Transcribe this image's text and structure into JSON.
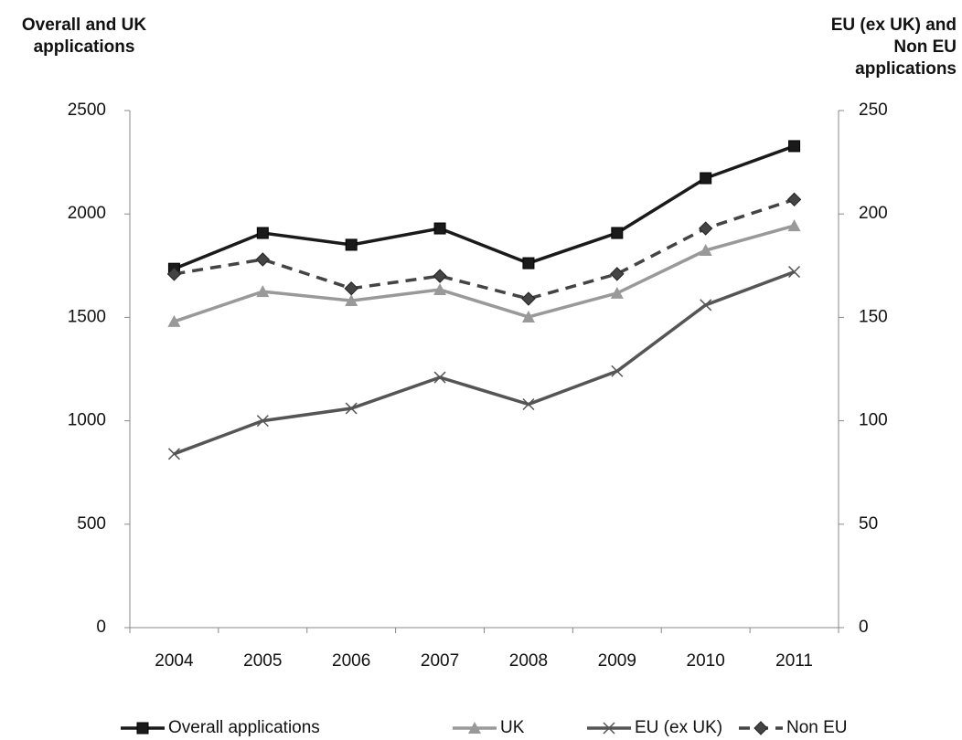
{
  "chart_data": {
    "type": "line",
    "y_title": "Overall and UK applications",
    "y2_title": "EU (ex UK) and Non EU applications",
    "categories": [
      "2004",
      "2005",
      "2006",
      "2007",
      "2008",
      "2009",
      "2010",
      "2011"
    ],
    "ylim": [
      0,
      2500
    ],
    "yticks": [
      0,
      500,
      1000,
      1500,
      2000,
      2500
    ],
    "y2lim": [
      0,
      250
    ],
    "y2ticks": [
      0,
      50,
      100,
      150,
      200,
      250
    ],
    "legend": "bottom",
    "series": [
      {
        "name": "Overall applications",
        "color": "#1a1a1a",
        "marker": "square",
        "dash": false,
        "axis": "y",
        "values": [
          1735,
          1908,
          1851,
          1930,
          1762,
          1908,
          2173,
          2328
        ]
      },
      {
        "name": "UK",
        "color": "#999999",
        "marker": "triangle",
        "dash": false,
        "axis": "y",
        "values": [
          1480,
          1625,
          1581,
          1634,
          1502,
          1617,
          1824,
          1943
        ]
      },
      {
        "name": "EU (ex UK)",
        "color": "#555555",
        "marker": "x",
        "dash": false,
        "axis": "y2",
        "values": [
          84,
          100,
          106,
          121,
          108,
          124,
          156,
          172
        ]
      },
      {
        "name": "Non EU",
        "color": "#444444",
        "marker": "diamond",
        "dash": true,
        "axis": "y2",
        "values": [
          171,
          178,
          164,
          170,
          159,
          171,
          193,
          207
        ]
      }
    ]
  }
}
